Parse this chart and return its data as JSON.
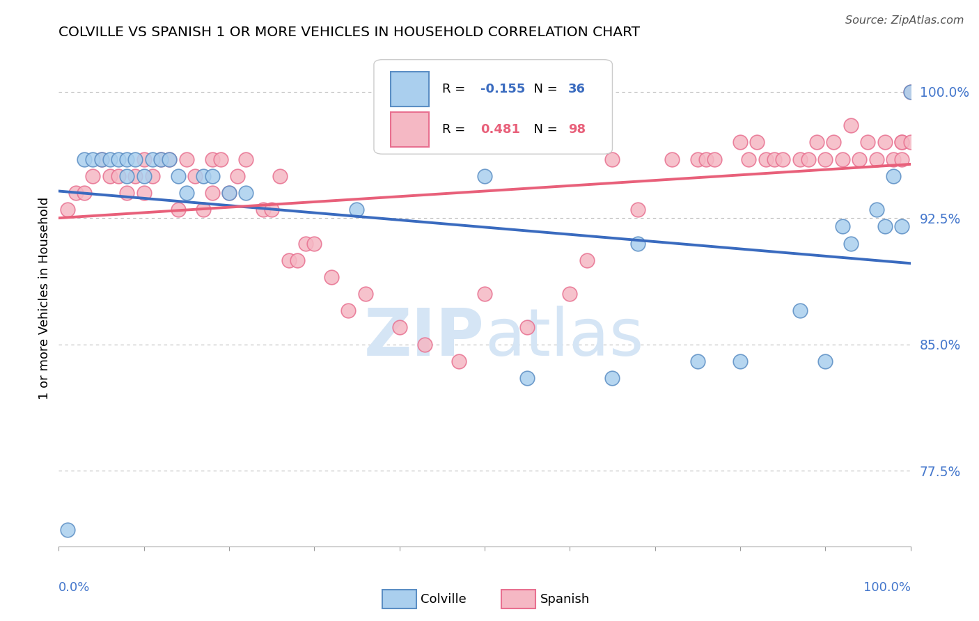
{
  "title": "COLVILLE VS SPANISH 1 OR MORE VEHICLES IN HOUSEHOLD CORRELATION CHART",
  "source": "Source: ZipAtlas.com",
  "ylabel": "1 or more Vehicles in Household",
  "ytick_values": [
    77.5,
    85.0,
    92.5,
    100.0
  ],
  "ylim": [
    73.0,
    102.5
  ],
  "xlim": [
    0.0,
    100.0
  ],
  "legend_colville": {
    "R": -0.155,
    "N": 36
  },
  "legend_spanish": {
    "R": 0.481,
    "N": 98
  },
  "colville_color": "#aacfee",
  "spanish_color": "#f5b8c4",
  "colville_edge_color": "#5b8ec4",
  "spanish_edge_color": "#e87090",
  "colville_line_color": "#3a6bbf",
  "spanish_line_color": "#e8607a",
  "watermark_color": "#d5e5f5",
  "colville_x": [
    1,
    3,
    4,
    5,
    6,
    7,
    8,
    8,
    9,
    10,
    11,
    12,
    13,
    14,
    15,
    17,
    18,
    20,
    22,
    35,
    50,
    55,
    65,
    68,
    75,
    80,
    87,
    90,
    92,
    93,
    96,
    97,
    98,
    99,
    100
  ],
  "colville_y": [
    74,
    96,
    96,
    96,
    96,
    96,
    95,
    96,
    96,
    95,
    96,
    96,
    96,
    95,
    94,
    95,
    95,
    94,
    94,
    93,
    95,
    83,
    83,
    91,
    84,
    84,
    87,
    84,
    92,
    91,
    93,
    92,
    95,
    92,
    100
  ],
  "spanish_x": [
    1,
    2,
    3,
    4,
    5,
    6,
    7,
    8,
    9,
    10,
    10,
    11,
    12,
    13,
    14,
    15,
    16,
    17,
    18,
    18,
    19,
    20,
    21,
    22,
    24,
    25,
    26,
    27,
    28,
    29,
    30,
    32,
    34,
    36,
    40,
    43,
    47,
    50,
    55,
    60,
    62,
    65,
    68,
    72,
    75,
    76,
    77,
    80,
    81,
    82,
    83,
    84,
    85,
    87,
    88,
    89,
    90,
    91,
    92,
    93,
    94,
    95,
    96,
    97,
    98,
    99,
    99,
    99,
    100,
    100
  ],
  "spanish_y": [
    93,
    94,
    94,
    95,
    96,
    95,
    95,
    94,
    95,
    94,
    96,
    95,
    96,
    96,
    93,
    96,
    95,
    93,
    94,
    96,
    96,
    94,
    95,
    96,
    93,
    93,
    95,
    90,
    90,
    91,
    91,
    89,
    87,
    88,
    86,
    85,
    84,
    88,
    86,
    88,
    90,
    96,
    93,
    96,
    96,
    96,
    96,
    97,
    96,
    97,
    96,
    96,
    96,
    96,
    96,
    97,
    96,
    97,
    96,
    98,
    96,
    97,
    96,
    97,
    96,
    96,
    97,
    97,
    97,
    100
  ]
}
